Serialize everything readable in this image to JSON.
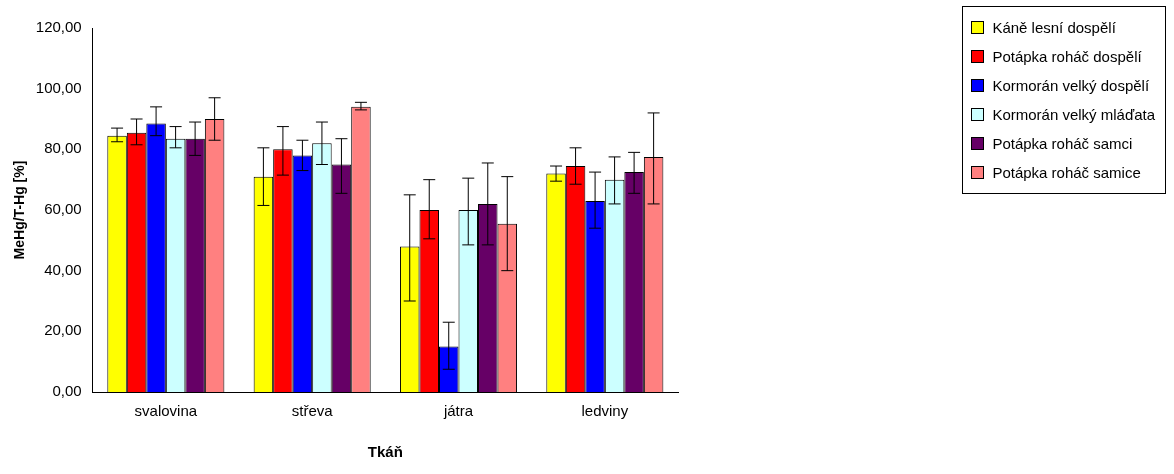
{
  "chart_data": {
    "type": "bar",
    "xlabel": "Tkáň",
    "ylabel": "MeHg/T-Hg [%]",
    "categories": [
      "svalovina",
      "střeva",
      "játra",
      "ledviny"
    ],
    "ylim": [
      0,
      120
    ],
    "yticks": [
      {
        "value": 0,
        "label": "0,00"
      },
      {
        "value": 20,
        "label": "20,00"
      },
      {
        "value": 40,
        "label": "40,00"
      },
      {
        "value": 60,
        "label": "60,00"
      },
      {
        "value": 80,
        "label": "80,00"
      },
      {
        "value": 100,
        "label": "100,00"
      },
      {
        "value": 120,
        "label": "120,00"
      }
    ],
    "legend": "top right",
    "grid": false,
    "series": [
      {
        "name": "Káně lesní dospělí",
        "color": "#ffff00",
        "values": [
          84.5,
          71,
          48,
          72
        ],
        "errors": [
          [
            82.5,
            87
          ],
          [
            61.5,
            80.5
          ],
          [
            30,
            65
          ],
          [
            69.5,
            74.5
          ]
        ]
      },
      {
        "name": "Potápka roháč dospělí",
        "color": "#ff0000",
        "values": [
          85.5,
          80,
          60,
          74.5
        ],
        "errors": [
          [
            81.5,
            90
          ],
          [
            71.5,
            87.5
          ],
          [
            50.5,
            70
          ],
          [
            68.5,
            80.5
          ]
        ]
      },
      {
        "name": "Kormorán velký dospělí",
        "color": "#0000ff",
        "values": [
          88.5,
          78,
          15,
          63
        ],
        "errors": [
          [
            84.5,
            94
          ],
          [
            73,
            83
          ],
          [
            7.5,
            23
          ],
          [
            54,
            72.5
          ]
        ]
      },
      {
        "name": "Kormorán velký mláďata",
        "color": "#ccffff",
        "values": [
          83.5,
          82,
          60,
          70
        ],
        "errors": [
          [
            80.5,
            87.5
          ],
          [
            75,
            89
          ],
          [
            48.5,
            70.5
          ],
          [
            62,
            77.5
          ]
        ]
      },
      {
        "name": "Potápka roháč samci",
        "color": "#660066",
        "values": [
          83.5,
          75,
          62,
          72.5
        ],
        "errors": [
          [
            78,
            89
          ],
          [
            65.5,
            83.5
          ],
          [
            48.5,
            75.5
          ],
          [
            65.5,
            79
          ]
        ]
      },
      {
        "name": "Potápka roháč samice",
        "color": "#ff8080",
        "values": [
          90,
          94,
          55.5,
          77.5
        ],
        "errors": [
          [
            83,
            97
          ],
          [
            93,
            95.5
          ],
          [
            40,
            71
          ],
          [
            62,
            92
          ]
        ]
      }
    ]
  }
}
